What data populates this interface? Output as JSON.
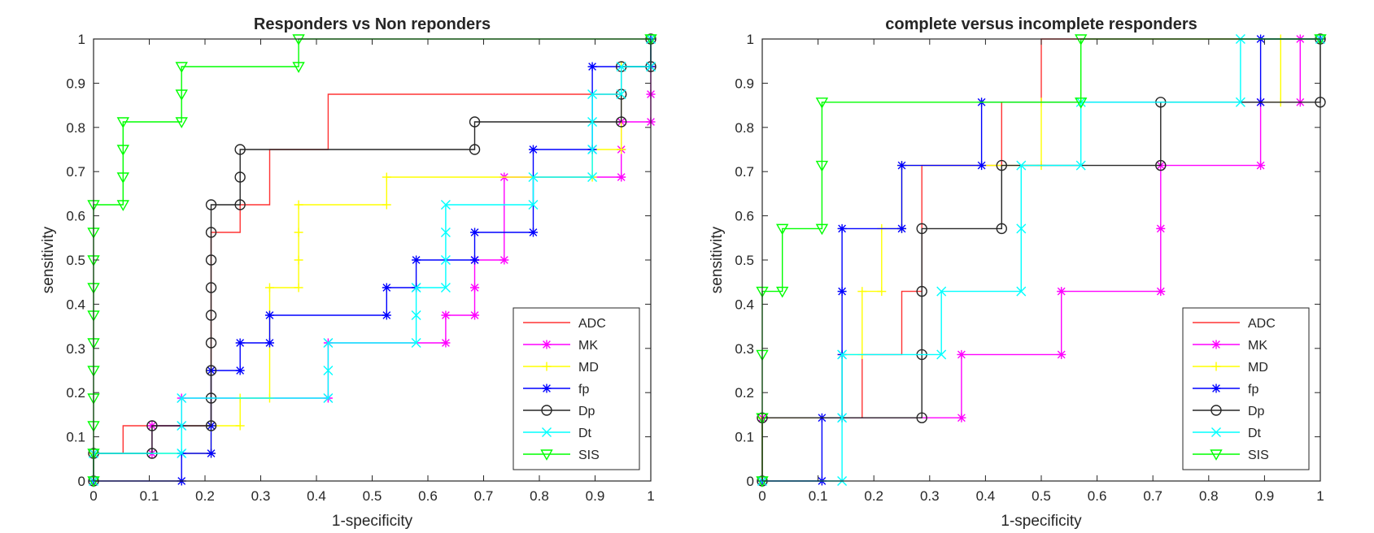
{
  "chart_data": [
    {
      "type": "line",
      "title": "Responders vs Non reponders",
      "xlabel": "1-specificity",
      "ylabel": "sensitivity",
      "xlim": [
        0,
        1
      ],
      "ylim": [
        0,
        1
      ],
      "xticks": [
        "0",
        "0.1",
        "0.2",
        "0.3",
        "0.4",
        "0.5",
        "0.6",
        "0.7",
        "0.8",
        "0.9",
        "1"
      ],
      "yticks": [
        "0",
        "0.1",
        "0.2",
        "0.3",
        "0.4",
        "0.5",
        "0.6",
        "0.7",
        "0.8",
        "0.9",
        "1"
      ],
      "legend_position": "bottom-right",
      "series": [
        {
          "name": "ADC",
          "color": "#ff3333",
          "marker": "none",
          "points": [
            [
              0,
              0
            ],
            [
              0,
              0.0625
            ],
            [
              0.053,
              0.0625
            ],
            [
              0.053,
              0.125
            ],
            [
              0.211,
              0.125
            ],
            [
              0.211,
              0.5625
            ],
            [
              0.263,
              0.5625
            ],
            [
              0.263,
              0.625
            ],
            [
              0.316,
              0.625
            ],
            [
              0.316,
              0.75
            ],
            [
              0.421,
              0.75
            ],
            [
              0.421,
              0.875
            ],
            [
              0.947,
              0.875
            ],
            [
              0.947,
              0.9375
            ],
            [
              1,
              0.9375
            ],
            [
              1,
              1
            ]
          ]
        },
        {
          "name": "MK",
          "color": "#ff00ff",
          "marker": "star",
          "points": [
            [
              0,
              0
            ],
            [
              0,
              0.0625
            ],
            [
              0.105,
              0.0625
            ],
            [
              0.105,
              0.125
            ],
            [
              0.158,
              0.125
            ],
            [
              0.158,
              0.1875
            ],
            [
              0.421,
              0.1875
            ],
            [
              0.421,
              0.3125
            ],
            [
              0.632,
              0.3125
            ],
            [
              0.632,
              0.375
            ],
            [
              0.684,
              0.375
            ],
            [
              0.684,
              0.4375
            ],
            [
              0.684,
              0.5
            ],
            [
              0.737,
              0.5
            ],
            [
              0.737,
              0.6875
            ],
            [
              0.947,
              0.6875
            ],
            [
              0.947,
              0.75
            ],
            [
              0.947,
              0.8125
            ],
            [
              1,
              0.8125
            ],
            [
              1,
              0.875
            ],
            [
              1,
              1
            ]
          ]
        },
        {
          "name": "MD",
          "color": "#ffff00",
          "marker": "plus",
          "points": [
            [
              0,
              0
            ],
            [
              0,
              0.0625
            ],
            [
              0.211,
              0.0625
            ],
            [
              0.211,
              0.125
            ],
            [
              0.263,
              0.125
            ],
            [
              0.263,
              0.1875
            ],
            [
              0.316,
              0.1875
            ],
            [
              0.316,
              0.4375
            ],
            [
              0.368,
              0.4375
            ],
            [
              0.368,
              0.5
            ],
            [
              0.368,
              0.5625
            ],
            [
              0.368,
              0.625
            ],
            [
              0.526,
              0.625
            ],
            [
              0.526,
              0.6875
            ],
            [
              0.895,
              0.6875
            ],
            [
              0.895,
              0.75
            ],
            [
              0.947,
              0.75
            ],
            [
              0.947,
              0.9375
            ],
            [
              1,
              0.9375
            ],
            [
              1,
              1
            ]
          ]
        },
        {
          "name": "fp",
          "color": "#0000ff",
          "marker": "star",
          "points": [
            [
              0,
              0
            ],
            [
              0.158,
              0
            ],
            [
              0.158,
              0.0625
            ],
            [
              0.211,
              0.0625
            ],
            [
              0.211,
              0.125
            ],
            [
              0.211,
              0.25
            ],
            [
              0.263,
              0.25
            ],
            [
              0.263,
              0.3125
            ],
            [
              0.316,
              0.3125
            ],
            [
              0.316,
              0.375
            ],
            [
              0.526,
              0.375
            ],
            [
              0.526,
              0.4375
            ],
            [
              0.579,
              0.4375
            ],
            [
              0.579,
              0.5
            ],
            [
              0.684,
              0.5
            ],
            [
              0.684,
              0.5625
            ],
            [
              0.789,
              0.5625
            ],
            [
              0.789,
              0.75
            ],
            [
              0.895,
              0.75
            ],
            [
              0.895,
              0.9375
            ],
            [
              1,
              0.9375
            ],
            [
              1,
              1
            ]
          ]
        },
        {
          "name": "Dp",
          "color": "#262626",
          "marker": "circle",
          "points": [
            [
              0,
              0
            ],
            [
              0,
              0.0625
            ],
            [
              0.105,
              0.0625
            ],
            [
              0.105,
              0.125
            ],
            [
              0.211,
              0.125
            ],
            [
              0.211,
              0.1875
            ],
            [
              0.211,
              0.25
            ],
            [
              0.211,
              0.3125
            ],
            [
              0.211,
              0.375
            ],
            [
              0.211,
              0.4375
            ],
            [
              0.211,
              0.5
            ],
            [
              0.211,
              0.5625
            ],
            [
              0.211,
              0.625
            ],
            [
              0.263,
              0.625
            ],
            [
              0.263,
              0.6875
            ],
            [
              0.263,
              0.75
            ],
            [
              0.684,
              0.75
            ],
            [
              0.684,
              0.8125
            ],
            [
              0.947,
              0.8125
            ],
            [
              0.947,
              0.875
            ],
            [
              0.947,
              0.9375
            ],
            [
              1,
              0.9375
            ],
            [
              1,
              1
            ]
          ]
        },
        {
          "name": "Dt",
          "color": "#00ffff",
          "marker": "cross",
          "points": [
            [
              0,
              0
            ],
            [
              0,
              0.0625
            ],
            [
              0.158,
              0.0625
            ],
            [
              0.158,
              0.125
            ],
            [
              0.158,
              0.1875
            ],
            [
              0.421,
              0.1875
            ],
            [
              0.421,
              0.25
            ],
            [
              0.421,
              0.3125
            ],
            [
              0.579,
              0.3125
            ],
            [
              0.579,
              0.375
            ],
            [
              0.579,
              0.4375
            ],
            [
              0.632,
              0.4375
            ],
            [
              0.632,
              0.5
            ],
            [
              0.632,
              0.5625
            ],
            [
              0.632,
              0.625
            ],
            [
              0.789,
              0.625
            ],
            [
              0.789,
              0.6875
            ],
            [
              0.895,
              0.6875
            ],
            [
              0.895,
              0.75
            ],
            [
              0.895,
              0.8125
            ],
            [
              0.895,
              0.875
            ],
            [
              0.947,
              0.875
            ],
            [
              0.947,
              0.9375
            ],
            [
              1,
              0.9375
            ],
            [
              1,
              1
            ]
          ]
        },
        {
          "name": "SIS",
          "color": "#00ff00",
          "marker": "triangle",
          "points": [
            [
              0,
              0
            ],
            [
              0,
              0.0625
            ],
            [
              0,
              0.125
            ],
            [
              0,
              0.1875
            ],
            [
              0,
              0.25
            ],
            [
              0,
              0.3125
            ],
            [
              0,
              0.375
            ],
            [
              0,
              0.4375
            ],
            [
              0,
              0.5
            ],
            [
              0,
              0.5625
            ],
            [
              0,
              0.625
            ],
            [
              0.053,
              0.625
            ],
            [
              0.053,
              0.6875
            ],
            [
              0.053,
              0.75
            ],
            [
              0.053,
              0.8125
            ],
            [
              0.158,
              0.8125
            ],
            [
              0.158,
              0.875
            ],
            [
              0.158,
              0.9375
            ],
            [
              0.368,
              0.9375
            ],
            [
              0.368,
              1
            ],
            [
              1,
              1
            ]
          ]
        }
      ]
    },
    {
      "type": "line",
      "title": "complete versus incomplete responders",
      "xlabel": "1-specificity",
      "ylabel": "sensitivity",
      "xlim": [
        0,
        1
      ],
      "ylim": [
        0,
        1
      ],
      "xticks": [
        "0",
        "0.1",
        "0.2",
        "0.3",
        "0.4",
        "0.5",
        "0.6",
        "0.7",
        "0.8",
        "0.9",
        "1"
      ],
      "yticks": [
        "0",
        "0.1",
        "0.2",
        "0.3",
        "0.4",
        "0.5",
        "0.6",
        "0.7",
        "0.8",
        "0.9",
        "1"
      ],
      "legend_position": "bottom-right",
      "series": [
        {
          "name": "ADC",
          "color": "#ff3333",
          "marker": "none",
          "points": [
            [
              0,
              0
            ],
            [
              0,
              0.143
            ],
            [
              0.179,
              0.143
            ],
            [
              0.179,
              0.286
            ],
            [
              0.25,
              0.286
            ],
            [
              0.25,
              0.429
            ],
            [
              0.286,
              0.429
            ],
            [
              0.286,
              0.714
            ],
            [
              0.429,
              0.714
            ],
            [
              0.429,
              0.857
            ],
            [
              0.5,
              0.857
            ],
            [
              0.5,
              1
            ],
            [
              1,
              1
            ]
          ]
        },
        {
          "name": "MK",
          "color": "#ff00ff",
          "marker": "star",
          "points": [
            [
              0,
              0
            ],
            [
              0,
              0.143
            ],
            [
              0.357,
              0.143
            ],
            [
              0.357,
              0.286
            ],
            [
              0.536,
              0.286
            ],
            [
              0.536,
              0.429
            ],
            [
              0.714,
              0.429
            ],
            [
              0.714,
              0.571
            ],
            [
              0.714,
              0.714
            ],
            [
              0.893,
              0.714
            ],
            [
              0.893,
              0.857
            ],
            [
              0.964,
              0.857
            ],
            [
              0.964,
              1
            ],
            [
              1,
              1
            ]
          ]
        },
        {
          "name": "MD",
          "color": "#ffff00",
          "marker": "plus",
          "points": [
            [
              0,
              0
            ],
            [
              0,
              0.143
            ],
            [
              0.143,
              0.143
            ],
            [
              0.143,
              0.286
            ],
            [
              0.179,
              0.286
            ],
            [
              0.179,
              0.429
            ],
            [
              0.214,
              0.429
            ],
            [
              0.214,
              0.571
            ],
            [
              0.25,
              0.571
            ],
            [
              0.25,
              0.714
            ],
            [
              0.5,
              0.714
            ],
            [
              0.5,
              0.857
            ],
            [
              0.929,
              0.857
            ],
            [
              0.929,
              1
            ],
            [
              1,
              1
            ]
          ]
        },
        {
          "name": "fp",
          "color": "#0000ff",
          "marker": "star",
          "points": [
            [
              0,
              0
            ],
            [
              0.107,
              0
            ],
            [
              0.107,
              0.143
            ],
            [
              0.143,
              0.143
            ],
            [
              0.143,
              0.286
            ],
            [
              0.143,
              0.429
            ],
            [
              0.143,
              0.571
            ],
            [
              0.25,
              0.571
            ],
            [
              0.25,
              0.714
            ],
            [
              0.393,
              0.714
            ],
            [
              0.393,
              0.857
            ],
            [
              0.893,
              0.857
            ],
            [
              0.893,
              1
            ],
            [
              1,
              1
            ]
          ]
        },
        {
          "name": "Dp",
          "color": "#262626",
          "marker": "circle",
          "points": [
            [
              0,
              0
            ],
            [
              0,
              0.143
            ],
            [
              0.286,
              0.143
            ],
            [
              0.286,
              0.286
            ],
            [
              0.286,
              0.429
            ],
            [
              0.286,
              0.571
            ],
            [
              0.429,
              0.571
            ],
            [
              0.429,
              0.714
            ],
            [
              0.714,
              0.714
            ],
            [
              0.714,
              0.857
            ],
            [
              1,
              0.857
            ],
            [
              1,
              1
            ]
          ]
        },
        {
          "name": "Dt",
          "color": "#00ffff",
          "marker": "cross",
          "points": [
            [
              0,
              0
            ],
            [
              0.143,
              0
            ],
            [
              0.143,
              0.143
            ],
            [
              0.143,
              0.286
            ],
            [
              0.321,
              0.286
            ],
            [
              0.321,
              0.429
            ],
            [
              0.464,
              0.429
            ],
            [
              0.464,
              0.571
            ],
            [
              0.464,
              0.714
            ],
            [
              0.571,
              0.714
            ],
            [
              0.571,
              0.857
            ],
            [
              0.857,
              0.857
            ],
            [
              0.857,
              1
            ],
            [
              1,
              1
            ]
          ]
        },
        {
          "name": "SIS",
          "color": "#00ff00",
          "marker": "triangle",
          "points": [
            [
              0,
              0
            ],
            [
              0,
              0.143
            ],
            [
              0,
              0.286
            ],
            [
              0,
              0.429
            ],
            [
              0.036,
              0.429
            ],
            [
              0.036,
              0.571
            ],
            [
              0.107,
              0.571
            ],
            [
              0.107,
              0.714
            ],
            [
              0.107,
              0.857
            ],
            [
              0.571,
              0.857
            ],
            [
              0.571,
              1
            ],
            [
              1,
              1
            ]
          ]
        }
      ]
    }
  ]
}
